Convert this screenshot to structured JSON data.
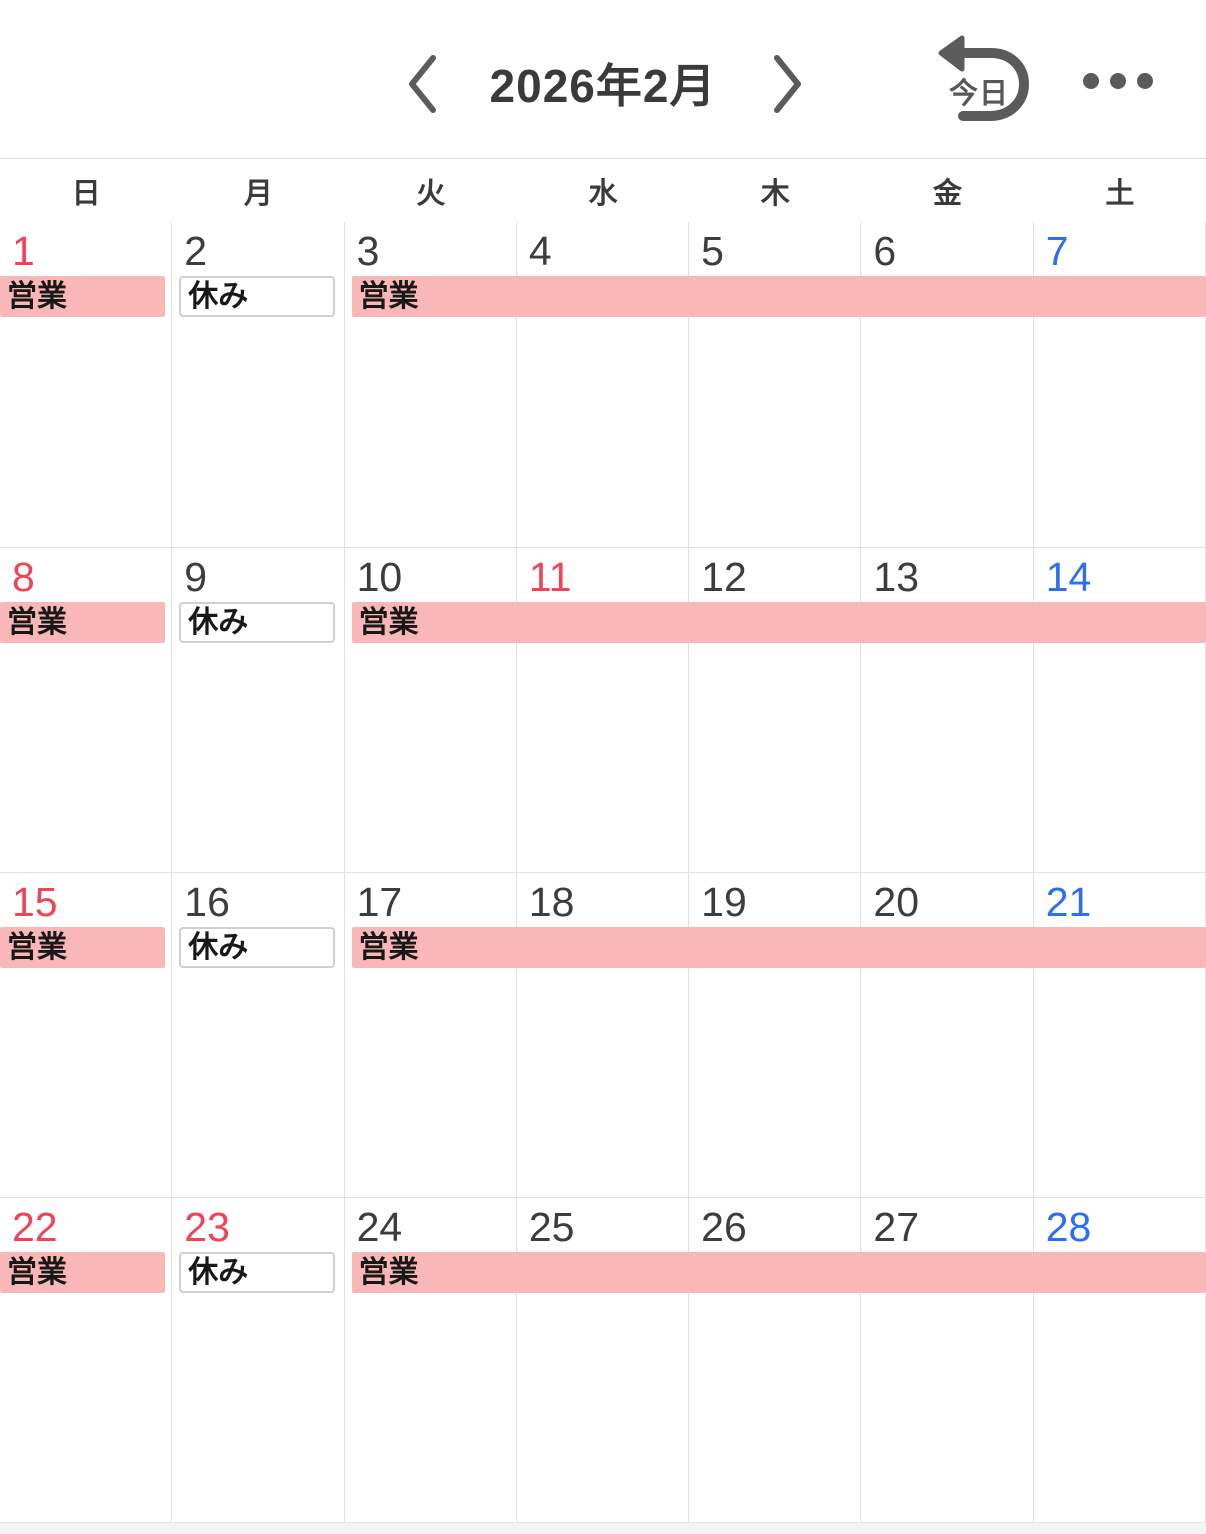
{
  "header": {
    "title": "2026年2月",
    "today_label": "今日",
    "icons": {
      "prev": "chevron-left",
      "next": "chevron-right",
      "today": "return-arrow",
      "more": "three-dots-ellipsis"
    }
  },
  "weekdays": [
    "日",
    "月",
    "火",
    "水",
    "木",
    "金",
    "土"
  ],
  "weeks": [
    {
      "days": [
        {
          "num": "1",
          "color": "sun"
        },
        {
          "num": "2",
          "color": "weekday"
        },
        {
          "num": "3",
          "color": "weekday"
        },
        {
          "num": "4",
          "color": "weekday"
        },
        {
          "num": "5",
          "color": "weekday"
        },
        {
          "num": "6",
          "color": "weekday"
        },
        {
          "num": "7",
          "color": "sat"
        }
      ],
      "events": [
        {
          "label": "営業",
          "type": "open",
          "col_start": 0,
          "col_span": 1
        },
        {
          "label": "休み",
          "type": "closed",
          "col_start": 1,
          "col_span": 1
        },
        {
          "label": "営業",
          "type": "open",
          "col_start": 2,
          "col_span": 5
        }
      ]
    },
    {
      "days": [
        {
          "num": "8",
          "color": "sun"
        },
        {
          "num": "9",
          "color": "weekday"
        },
        {
          "num": "10",
          "color": "weekday"
        },
        {
          "num": "11",
          "color": "holiday"
        },
        {
          "num": "12",
          "color": "weekday"
        },
        {
          "num": "13",
          "color": "weekday"
        },
        {
          "num": "14",
          "color": "sat"
        }
      ],
      "events": [
        {
          "label": "営業",
          "type": "open",
          "col_start": 0,
          "col_span": 1
        },
        {
          "label": "休み",
          "type": "closed",
          "col_start": 1,
          "col_span": 1
        },
        {
          "label": "営業",
          "type": "open",
          "col_start": 2,
          "col_span": 5
        }
      ]
    },
    {
      "days": [
        {
          "num": "15",
          "color": "sun"
        },
        {
          "num": "16",
          "color": "weekday"
        },
        {
          "num": "17",
          "color": "weekday"
        },
        {
          "num": "18",
          "color": "weekday"
        },
        {
          "num": "19",
          "color": "weekday"
        },
        {
          "num": "20",
          "color": "weekday"
        },
        {
          "num": "21",
          "color": "sat"
        }
      ],
      "events": [
        {
          "label": "営業",
          "type": "open",
          "col_start": 0,
          "col_span": 1
        },
        {
          "label": "休み",
          "type": "closed",
          "col_start": 1,
          "col_span": 1
        },
        {
          "label": "営業",
          "type": "open",
          "col_start": 2,
          "col_span": 5
        }
      ]
    },
    {
      "days": [
        {
          "num": "22",
          "color": "sun"
        },
        {
          "num": "23",
          "color": "holiday"
        },
        {
          "num": "24",
          "color": "weekday"
        },
        {
          "num": "25",
          "color": "weekday"
        },
        {
          "num": "26",
          "color": "weekday"
        },
        {
          "num": "27",
          "color": "weekday"
        },
        {
          "num": "28",
          "color": "sat"
        }
      ],
      "events": [
        {
          "label": "営業",
          "type": "open",
          "col_start": 0,
          "col_span": 1
        },
        {
          "label": "休み",
          "type": "closed",
          "col_start": 1,
          "col_span": 1
        },
        {
          "label": "営業",
          "type": "open",
          "col_start": 2,
          "col_span": 5
        }
      ]
    }
  ],
  "colors": {
    "holiday_red": "#ef4458",
    "saturday_blue": "#2d6ff0",
    "weekday_text": "#3d3d3d",
    "open_pink": "#f9b7b7",
    "grid_border": "#e0e0e0",
    "icon_gray": "#5b5b5b"
  }
}
